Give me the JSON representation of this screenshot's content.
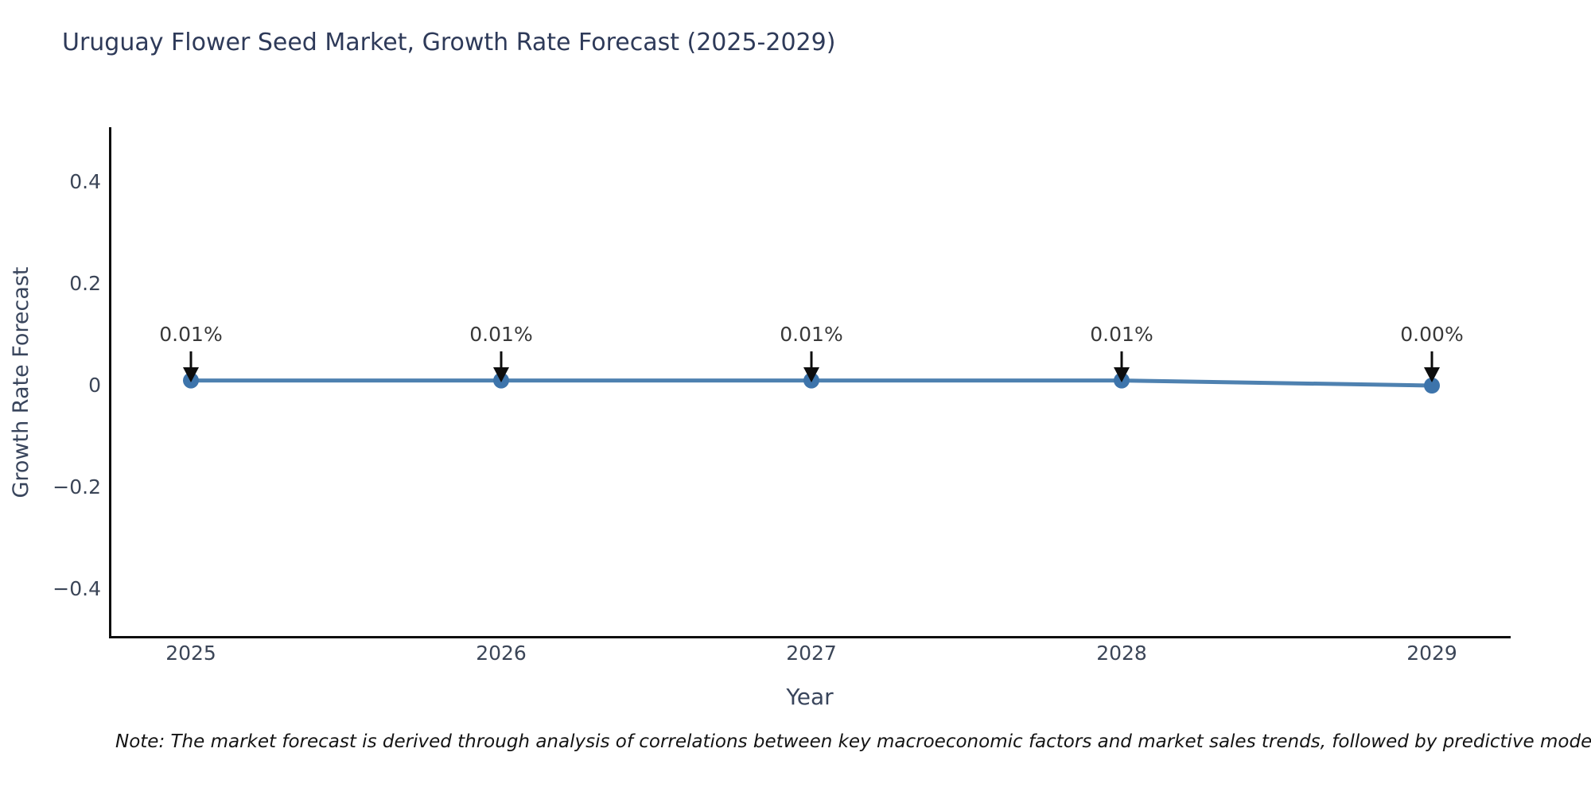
{
  "title": "Uruguay Flower Seed Market, Growth Rate Forecast (2025-2029)",
  "axes": {
    "x_label": "Year",
    "y_label": "Growth Rate Forecast"
  },
  "note": "Note: The market forecast is derived through analysis of correlations between key macroeconomic factors and market sales trends, followed by predictive modeling to project future sales.",
  "chart_data": {
    "type": "line",
    "title": "Uruguay Flower Seed Market, Growth Rate Forecast (2025-2029)",
    "xlabel": "Year",
    "ylabel": "Growth Rate Forecast",
    "x": [
      2025,
      2026,
      2027,
      2028,
      2029
    ],
    "values": [
      0.01,
      0.01,
      0.01,
      0.01,
      0.0
    ],
    "point_labels": [
      "0.01%",
      "0.01%",
      "0.01%",
      "0.01%",
      "0.00%"
    ],
    "x_tick_labels": [
      "2025",
      "2026",
      "2027",
      "2028",
      "2029"
    ],
    "y_tick_labels": [
      "0.4",
      "0.2",
      "0",
      "−0.2",
      "−0.4"
    ],
    "ylim": [
      -0.5,
      0.51
    ],
    "grid": false,
    "legend": false,
    "annotation_style": "value label with downward black arrow to each marker",
    "colors": {
      "line": "#4e81b0",
      "marker": "#3d74ab",
      "arrow": "#0d0d0d",
      "text": "#2e3a59"
    }
  }
}
